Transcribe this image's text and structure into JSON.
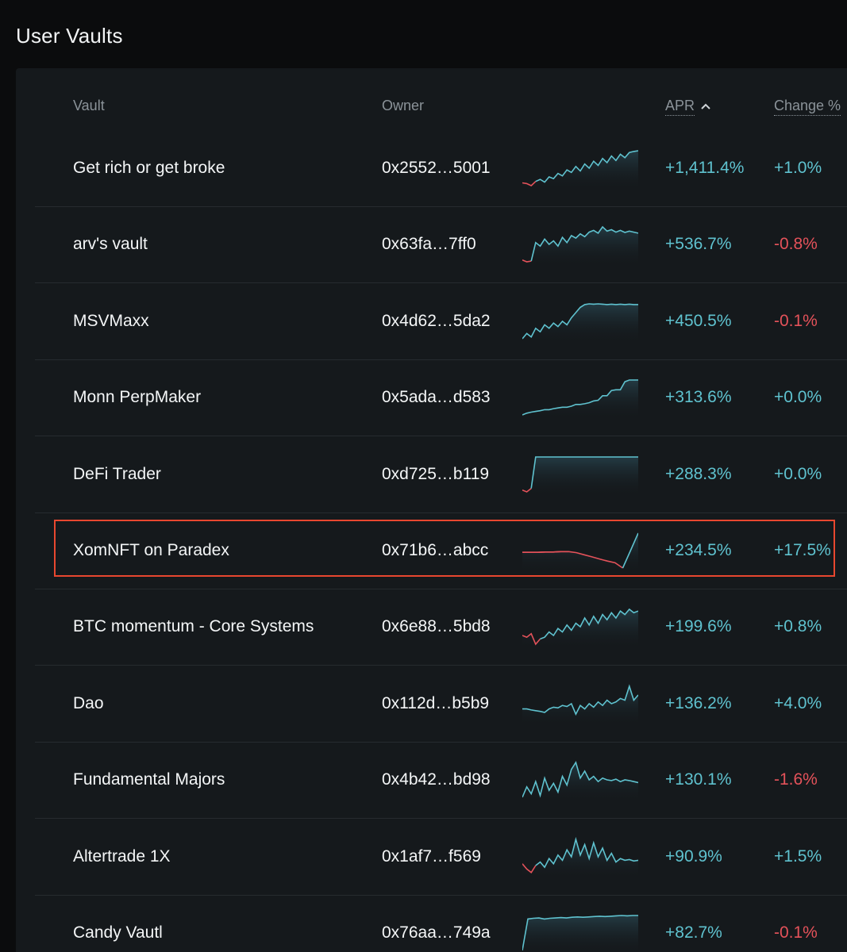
{
  "page": {
    "title": "User Vaults"
  },
  "table": {
    "columns": {
      "vault": "Vault",
      "owner": "Owner",
      "apr": "APR",
      "change": "Change %"
    },
    "sort": {
      "column": "apr",
      "direction": "up",
      "icon": "chevron-up-icon"
    },
    "highlighted_row": 5,
    "colors": {
      "positive": "#5fc2cf",
      "negative": "#e4525a",
      "highlight_border": "#e8472f"
    },
    "rows": [
      {
        "name": "Get rich or get broke",
        "owner": "0x2552…5001",
        "apr": "+1,411.4%",
        "change": "+1.0%",
        "change_sign": "pos",
        "spark": [
          0.08,
          0.06,
          0.0,
          0.12,
          0.18,
          0.1,
          0.25,
          0.2,
          0.35,
          0.28,
          0.45,
          0.38,
          0.55,
          0.42,
          0.62,
          0.5,
          0.7,
          0.58,
          0.78,
          0.66,
          0.85,
          0.72,
          0.9,
          0.8,
          0.95,
          0.98,
          1.0
        ],
        "spark_neg": 3
      },
      {
        "name": "arv's vault",
        "owner": "0x63fa…7ff0",
        "apr": "+536.7%",
        "change": "-0.8%",
        "change_sign": "neg",
        "spark": [
          0.05,
          0.0,
          0.02,
          0.55,
          0.45,
          0.65,
          0.5,
          0.6,
          0.45,
          0.7,
          0.55,
          0.75,
          0.68,
          0.8,
          0.72,
          0.85,
          0.9,
          0.82,
          1.0,
          0.88,
          0.92,
          0.85,
          0.9,
          0.84,
          0.88,
          0.85,
          0.82
        ],
        "spark_neg": 2
      },
      {
        "name": "MSVMaxx",
        "owner": "0x4d62…5da2",
        "apr": "+450.5%",
        "change": "-0.1%",
        "change_sign": "neg",
        "spark": [
          0.0,
          0.15,
          0.05,
          0.3,
          0.2,
          0.4,
          0.3,
          0.45,
          0.35,
          0.5,
          0.4,
          0.6,
          0.75,
          0.9,
          0.98,
          1.0,
          0.99,
          1.0,
          0.99,
          0.98,
          0.99,
          0.98,
          0.99,
          0.98,
          0.99,
          0.98,
          0.98
        ],
        "spark_neg": 0
      },
      {
        "name": "Monn PerpMaker",
        "owner": "0x5ada…d583",
        "apr": "+313.6%",
        "change": "+0.0%",
        "change_sign": "pos",
        "spark": [
          0.0,
          0.05,
          0.08,
          0.1,
          0.12,
          0.15,
          0.15,
          0.18,
          0.2,
          0.22,
          0.22,
          0.25,
          0.3,
          0.3,
          0.32,
          0.35,
          0.4,
          0.42,
          0.55,
          0.55,
          0.7,
          0.72,
          0.72,
          0.95,
          1.0,
          1.0,
          1.0
        ],
        "spark_neg": 0
      },
      {
        "name": "DeFi Trader",
        "owner": "0xd725…b119",
        "apr": "+288.3%",
        "change": "+0.0%",
        "change_sign": "pos",
        "spark": [
          0.05,
          0.0,
          0.1,
          1.0,
          1.0,
          1.0,
          1.0,
          1.0,
          1.0,
          1.0,
          1.0,
          1.0,
          1.0,
          1.0,
          1.0,
          1.0,
          1.0,
          1.0,
          1.0,
          1.0,
          1.0,
          1.0,
          1.0,
          1.0,
          1.0,
          1.0,
          1.0
        ],
        "spark_neg": 2
      },
      {
        "name": "XomNFT on Paradex",
        "owner": "0x71b6…abcc",
        "apr": "+234.5%",
        "change": "+17.5%",
        "change_sign": "pos",
        "spark": [
          0.45,
          0.45,
          0.45,
          0.46,
          0.46,
          0.47,
          0.47,
          0.44,
          0.38,
          0.32,
          0.26,
          0.2,
          0.15,
          0.0,
          0.5,
          1.0
        ],
        "spark_neg": 13
      },
      {
        "name": "BTC momentum - Core Systems",
        "owner": "0x6e88…5bd8",
        "apr": "+199.6%",
        "change": "+0.8%",
        "change_sign": "pos",
        "spark": [
          0.25,
          0.2,
          0.3,
          0.0,
          0.15,
          0.2,
          0.35,
          0.25,
          0.45,
          0.35,
          0.55,
          0.4,
          0.6,
          0.5,
          0.75,
          0.55,
          0.8,
          0.6,
          0.85,
          0.7,
          0.9,
          0.75,
          0.95,
          0.85,
          1.0,
          0.9,
          0.95
        ],
        "spark_neg": 4
      },
      {
        "name": "Dao",
        "owner": "0x112d…b5b9",
        "apr": "+136.2%",
        "change": "+4.0%",
        "change_sign": "pos",
        "spark": [
          0.35,
          0.35,
          0.32,
          0.3,
          0.28,
          0.25,
          0.35,
          0.4,
          0.38,
          0.45,
          0.42,
          0.5,
          0.2,
          0.45,
          0.35,
          0.5,
          0.4,
          0.55,
          0.45,
          0.6,
          0.5,
          0.55,
          0.65,
          0.6,
          1.0,
          0.6,
          0.75
        ],
        "spark_neg": 0
      },
      {
        "name": "Fundamental Majors",
        "owner": "0x4b42…bd98",
        "apr": "+130.1%",
        "change": "-1.6%",
        "change_sign": "neg",
        "spark": [
          0.0,
          0.3,
          0.1,
          0.45,
          0.05,
          0.55,
          0.2,
          0.4,
          0.15,
          0.6,
          0.35,
          0.8,
          1.0,
          0.55,
          0.75,
          0.5,
          0.6,
          0.45,
          0.55,
          0.5,
          0.48,
          0.52,
          0.45,
          0.5,
          0.48,
          0.45,
          0.42
        ],
        "spark_neg": 0
      },
      {
        "name": "Altertrade 1X",
        "owner": "0x1af7…f569",
        "apr": "+90.9%",
        "change": "+1.5%",
        "change_sign": "pos",
        "spark": [
          0.3,
          0.15,
          0.05,
          0.25,
          0.35,
          0.2,
          0.45,
          0.3,
          0.55,
          0.4,
          0.7,
          0.5,
          1.0,
          0.55,
          0.85,
          0.45,
          0.9,
          0.5,
          0.75,
          0.4,
          0.6,
          0.35,
          0.45,
          0.4,
          0.42,
          0.38,
          0.4
        ],
        "spark_neg": 3
      },
      {
        "name": "Candy Vautl",
        "owner": "0x76aa…749a",
        "apr": "+82.7%",
        "change": "-0.1%",
        "change_sign": "neg",
        "spark": [
          0.0,
          0.9,
          0.92,
          0.93,
          0.9,
          0.92,
          0.93,
          0.94,
          0.93,
          0.95,
          0.96,
          0.95,
          0.96,
          0.97,
          0.98,
          0.97,
          0.98,
          0.99,
          1.0,
          0.99,
          1.0,
          1.0
        ],
        "spark_neg": 0
      }
    ]
  }
}
